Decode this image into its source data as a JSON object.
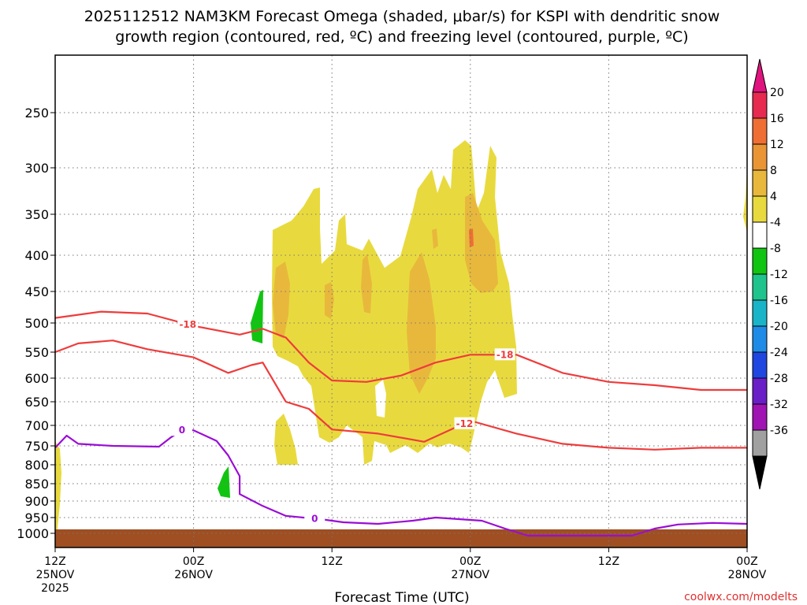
{
  "chart_data": {
    "type": "time-height contour",
    "title_line1": "2025112512 NAM3KM Forecast Omega (shaded, μbar/s) for KSPI with dendritic snow",
    "title_line2": "growth region (contoured, red, ºC) and freezing level (contoured, purple, ºC)",
    "xlabel": "Forecast Time (UTC)",
    "credit": "coolwx.com/modelts",
    "y_axis": {
      "unit": "hPa",
      "ticks": [
        "250",
        "300",
        "350",
        "400",
        "450",
        "500",
        "550",
        "600",
        "650",
        "700",
        "750",
        "800",
        "850",
        "900",
        "950",
        "1000"
      ],
      "ylim": [
        1000,
        200
      ]
    },
    "x_axis": {
      "xlim_hours": [
        0,
        60
      ],
      "ticks": [
        {
          "hour": 0,
          "line1": "12Z",
          "line2": "25NOV",
          "line3": "2025"
        },
        {
          "hour": 12,
          "line1": "00Z",
          "line2": "26NOV",
          "line3": ""
        },
        {
          "hour": 24,
          "line1": "12Z",
          "line2": "",
          "line3": ""
        },
        {
          "hour": 36,
          "line1": "00Z",
          "line2": "27NOV",
          "line3": ""
        },
        {
          "hour": 48,
          "line1": "12Z",
          "line2": "",
          "line3": ""
        },
        {
          "hour": 60,
          "line1": "00Z",
          "line2": "28NOV",
          "line3": ""
        }
      ]
    },
    "colorbar": {
      "labels": [
        "20",
        "16",
        "12",
        "8",
        "4",
        "-4",
        "-8",
        "-12",
        "-16",
        "-20",
        "-24",
        "-28",
        "-32",
        "-36"
      ],
      "colors": [
        "#e62a50",
        "#ef6e34",
        "#e99536",
        "#e8b83c",
        "#e8da3e",
        "#ffffff",
        "#12c412",
        "#1ec48c",
        "#1ab4c8",
        "#1e8ce6",
        "#2046e0",
        "#6a1ec8",
        "#a014b4",
        "#a0a0a0"
      ],
      "top_color": "#e0147e",
      "bottom_color": "#000000"
    },
    "contours": [
      {
        "name": "-18 ºC isotherm",
        "color": "#ee3c3c",
        "label": "-18",
        "pressure_by_hour": [
          [
            0,
            492
          ],
          [
            4,
            482
          ],
          [
            8,
            485
          ],
          [
            12,
            505
          ],
          [
            16,
            520
          ],
          [
            18,
            510
          ],
          [
            20,
            525
          ],
          [
            22,
            570
          ],
          [
            24,
            605
          ],
          [
            27,
            608
          ],
          [
            30,
            595
          ],
          [
            33,
            570
          ],
          [
            36,
            555
          ],
          [
            40,
            555
          ],
          [
            44,
            590
          ],
          [
            48,
            608
          ],
          [
            52,
            615
          ],
          [
            56,
            625
          ],
          [
            60,
            625
          ]
        ]
      },
      {
        "name": "-12 ºC isotherm",
        "color": "#ee3c3c",
        "label": "-12",
        "pressure_by_hour": [
          [
            0,
            550
          ],
          [
            2,
            535
          ],
          [
            5,
            530
          ],
          [
            8,
            545
          ],
          [
            12,
            560
          ],
          [
            15,
            590
          ],
          [
            17,
            575
          ],
          [
            18,
            570
          ],
          [
            20,
            650
          ],
          [
            22,
            665
          ],
          [
            24,
            710
          ],
          [
            28,
            720
          ],
          [
            32,
            740
          ],
          [
            36,
            690
          ],
          [
            40,
            720
          ],
          [
            44,
            745
          ],
          [
            48,
            755
          ],
          [
            52,
            760
          ],
          [
            56,
            755
          ],
          [
            60,
            755
          ]
        ]
      },
      {
        "name": "0 ºC freezing level",
        "color": "#9a0dd6",
        "label": "0",
        "pressure_by_hour": [
          [
            0,
            755
          ],
          [
            1,
            725
          ],
          [
            2,
            745
          ],
          [
            5,
            750
          ],
          [
            9,
            752
          ],
          [
            10,
            730
          ],
          [
            11,
            712
          ],
          [
            12,
            712
          ],
          [
            14,
            738
          ],
          [
            15,
            775
          ],
          [
            16,
            830
          ],
          [
            16,
            880
          ],
          [
            18,
            915
          ],
          [
            20,
            945
          ],
          [
            23,
            955
          ],
          [
            25,
            965
          ],
          [
            28,
            970
          ],
          [
            31,
            960
          ],
          [
            33,
            950
          ],
          [
            35,
            955
          ],
          [
            37,
            960
          ],
          [
            39,
            985
          ],
          [
            41,
            1005
          ],
          [
            50,
            1005
          ],
          [
            52,
            985
          ],
          [
            54,
            972
          ],
          [
            57,
            967
          ],
          [
            60,
            970
          ]
        ]
      }
    ],
    "shading_summary": "Upward-motion (positive omega) yellow/orange shading between hours ~18 and ~38 from ~270 to ~800 hPa with orange cores up to 8-12 μbar/s; small green (negative) areas near hour 16-17; ground shown in brown below ~980 hPa."
  }
}
